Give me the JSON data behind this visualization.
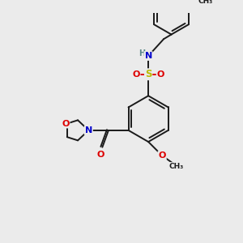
{
  "background_color": "#ebebeb",
  "bond_color": "#1a1a1a",
  "atom_colors": {
    "O": "#dd0000",
    "N": "#0000cc",
    "S": "#bbbb00",
    "H": "#5a8888",
    "C": "#1a1a1a"
  },
  "figsize": [
    3.0,
    3.0
  ],
  "dpi": 100
}
